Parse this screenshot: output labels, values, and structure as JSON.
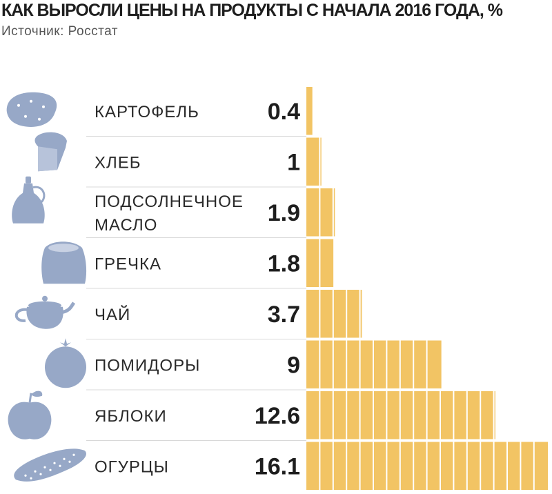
{
  "title": "КАК ВЫРОСЛИ ЦЕНЫ НА ПРОДУКТЫ С НАЧАЛА 2016 ГОДА, %",
  "subtitle": "Источник: Росстат",
  "colors": {
    "bar": "#f2c464",
    "separator": "#ffffff",
    "icon": "#97a8c7",
    "rule": "#d8d8d8"
  },
  "chart_data": {
    "type": "bar",
    "orientation": "horizontal",
    "title": "КАК ВЫРОСЛИ ЦЕНЫ НА ПРОДУКТЫ С НАЧАЛА 2016 ГОДА, %",
    "source": "Источник: Росстат",
    "unit": "%",
    "categories": [
      "КАРТОФЕЛЬ",
      "ХЛЕБ",
      "ПОДСОЛНЕЧНОЕ\nМАСЛО",
      "ГРЕЧКА",
      "ЧАЙ",
      "ПОМИДОРЫ",
      "ЯБЛОКИ",
      "ОГУРЦЫ"
    ],
    "value_labels": [
      "0.4",
      "1",
      "1.9",
      "1.8",
      "3.7",
      "9",
      "12.6",
      "16.1"
    ],
    "values": [
      0.4,
      1,
      1.9,
      1.8,
      3.7,
      9,
      12.6,
      16.1
    ],
    "icons": [
      "potato-icon",
      "bread-icon",
      "oil-bottle-icon",
      "buckwheat-sack-icon",
      "teapot-icon",
      "tomato-icon",
      "apple-icon",
      "cucumber-icon"
    ],
    "xlim": [
      0,
      16.1
    ],
    "grid": false,
    "legend": "none"
  }
}
